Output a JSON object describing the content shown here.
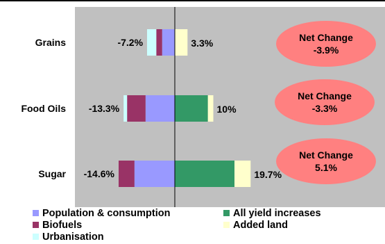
{
  "chart_data": {
    "type": "bar",
    "orientation": "horizontal",
    "stacked": true,
    "categories": [
      "Grains",
      "Food Oils",
      "Sugar"
    ],
    "xlim": [
      -30,
      30
    ],
    "grid": false,
    "legend_position": "bottom",
    "series": [
      {
        "name": "Population & consumption",
        "color": "#9999ff",
        "values": [
          -3.3,
          -7.6,
          -10.5
        ]
      },
      {
        "name": "Biofuels",
        "color": "#993366",
        "values": [
          -1.5,
          -4.8,
          -4.1
        ]
      },
      {
        "name": "Urbanisation",
        "color": "#ccffff",
        "values": [
          -2.4,
          -0.9,
          0
        ]
      },
      {
        "name": "All yield increases",
        "color": "#339966",
        "values": [
          0,
          8.6,
          15.5
        ]
      },
      {
        "name": "Added land",
        "color": "#ffffcc",
        "values": [
          3.3,
          1.4,
          4.2
        ]
      }
    ],
    "negative_totals": [
      "-7.2%",
      "-13.3%",
      "-14.6%"
    ],
    "positive_totals": [
      "3.3%",
      "10%",
      "19.7%"
    ],
    "net_change_label": "Net Change",
    "net_changes": [
      "-3.9%",
      "-3.3%",
      "5.1%"
    ],
    "colors": {
      "plot_background": "#c0c0c0",
      "ellipse": "#ff8080",
      "axis": "#000000"
    }
  }
}
